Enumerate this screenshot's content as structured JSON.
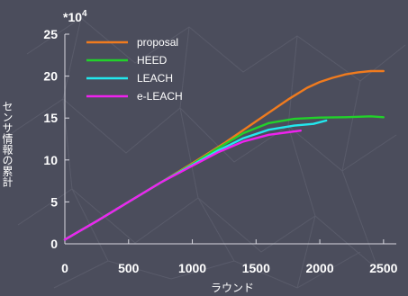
{
  "chart_data": {
    "type": "line",
    "multiplier_base": "*10",
    "multiplier_exp": "4",
    "xlabel": "ラウンド",
    "ylabel": "センサ情報の累計",
    "xlim": [
      0,
      2600
    ],
    "ylim": [
      0,
      25
    ],
    "xticks": [
      0,
      500,
      1000,
      1500,
      2000,
      2500
    ],
    "yticks": [
      0,
      5,
      10,
      15,
      20,
      25
    ],
    "grid": false,
    "legend_position": "top-left",
    "series": [
      {
        "name": "proposal",
        "color": "#f07b1e",
        "x": [
          0,
          250,
          500,
          750,
          1000,
          1250,
          1500,
          1750,
          1900,
          2000,
          2100,
          2200,
          2300,
          2400,
          2500
        ],
        "y": [
          0.5,
          2.7,
          5.0,
          7.3,
          9.6,
          12.0,
          14.6,
          17.2,
          18.6,
          19.3,
          19.8,
          20.2,
          20.45,
          20.6,
          20.6
        ]
      },
      {
        "name": "HEED",
        "color": "#22d12a",
        "x": [
          0,
          250,
          500,
          750,
          1000,
          1200,
          1400,
          1600,
          1800,
          2000,
          2200,
          2400,
          2500
        ],
        "y": [
          0.5,
          2.7,
          5.0,
          7.3,
          9.5,
          11.4,
          13.2,
          14.4,
          14.9,
          15.05,
          15.1,
          15.2,
          15.1
        ]
      },
      {
        "name": "LEACH",
        "color": "#22e8ee",
        "x": [
          0,
          250,
          500,
          750,
          1000,
          1200,
          1400,
          1600,
          1800,
          1950,
          2050
        ],
        "y": [
          0.5,
          2.7,
          5.0,
          7.3,
          9.4,
          11.1,
          12.6,
          13.6,
          14.1,
          14.3,
          14.7
        ]
      },
      {
        "name": "e-LEACH",
        "color": "#ee22ee",
        "x": [
          0,
          250,
          500,
          750,
          1000,
          1200,
          1400,
          1600,
          1750,
          1850
        ],
        "y": [
          0.5,
          2.7,
          5.0,
          7.3,
          9.3,
          10.9,
          12.2,
          13.0,
          13.3,
          13.5
        ]
      }
    ]
  }
}
